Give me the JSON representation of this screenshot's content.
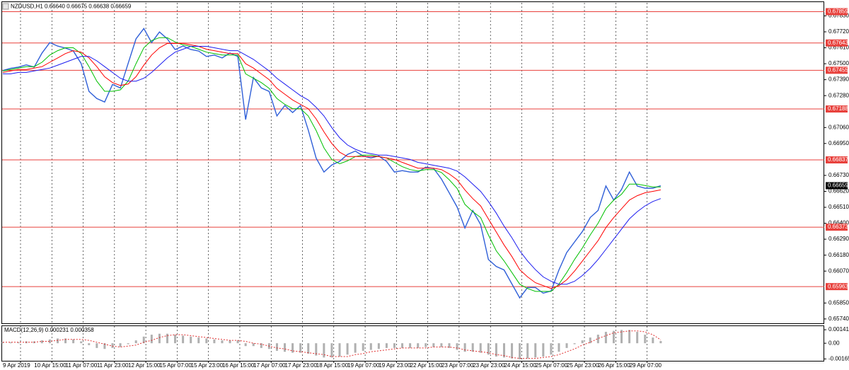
{
  "chart_data": [
    {
      "type": "line",
      "title": "NZDUSD,H1  0.66640 0.66675 0.66638 0.66659",
      "categories": [
        "9 Apr 2019",
        null,
        null,
        null,
        "10 Apr 15:00",
        null,
        null,
        null,
        "11 Apr 07:00",
        null,
        null,
        null,
        "11 Apr 23:00",
        null,
        null,
        null,
        "12 Apr 15:00",
        null,
        null,
        null,
        "15 Apr 07:00",
        null,
        null,
        null,
        "15 Apr 23:00",
        null,
        null,
        null,
        "16 Apr 15:00",
        null,
        null,
        null,
        "17 Apr 07:00",
        null,
        null,
        null,
        "17 Apr 23:00",
        null,
        null,
        null,
        "18 Apr 15:00",
        null,
        null,
        null,
        "19 Apr 07:00",
        null,
        null,
        null,
        "19 Apr 23:00",
        null,
        null,
        null,
        "22 Apr 15:00",
        null,
        null,
        null,
        "23 Apr 07:00",
        null,
        null,
        null,
        "23 Apr 23:00",
        null,
        null,
        null,
        "24 Apr 15:00",
        null,
        null,
        null,
        "25 Apr 07:00",
        null,
        null,
        null,
        "25 Apr 23:00",
        null,
        null,
        null,
        "26 Apr 15:00",
        null,
        null,
        null,
        "29 Apr 07:00",
        null,
        null,
        null,
        null
      ],
      "series": [
        {
          "color": "#2f5fd8",
          "width": 1.4,
          "values": [
            0.67453,
            0.67468,
            0.67477,
            0.67492,
            0.67477,
            0.67574,
            0.67646,
            0.67622,
            0.67608,
            0.67588,
            0.67502,
            0.67309,
            0.6726,
            0.67236,
            0.67357,
            0.67333,
            0.67502,
            0.67671,
            0.67743,
            0.67646,
            0.67719,
            0.67671,
            0.67598,
            0.67622,
            0.67598,
            0.67588,
            0.6755,
            0.6756,
            0.6754,
            0.67574,
            0.6755,
            0.67115,
            0.67405,
            0.67333,
            0.67309,
            0.6714,
            0.67212,
            0.67164,
            0.67212,
            0.67043,
            0.6685,
            0.66753,
            0.66802,
            0.66826,
            0.66874,
            0.66898,
            0.66864,
            0.6685,
            0.66864,
            0.66826,
            0.66753,
            0.66763,
            0.66753,
            0.66753,
            0.66787,
            0.66778,
            0.66705,
            0.66609,
            0.66512,
            0.66367,
            0.66488,
            0.66391,
            0.6615,
            0.66102,
            0.66078,
            0.65981,
            0.65885,
            0.65957,
            0.65957,
            0.65918,
            0.65933,
            0.66078,
            0.66198,
            0.66271,
            0.66343,
            0.6644,
            0.66488,
            0.66657,
            0.6656,
            0.66633,
            0.66753,
            0.66657,
            0.66642,
            0.66642,
            0.66659
          ]
        },
        {
          "color": "#00c000",
          "width": 1,
          "values": [
            0.6745,
            0.6746,
            0.6747,
            0.6748,
            0.6748,
            0.6751,
            0.6756,
            0.6759,
            0.6761,
            0.6761,
            0.6757,
            0.6748,
            0.6738,
            0.6731,
            0.6731,
            0.6732,
            0.6738,
            0.675,
            0.6761,
            0.6766,
            0.6768,
            0.6768,
            0.6765,
            0.6763,
            0.6762,
            0.676,
            0.6758,
            0.6757,
            0.6756,
            0.6756,
            0.6756,
            0.6743,
            0.674,
            0.6737,
            0.6733,
            0.6726,
            0.6722,
            0.6719,
            0.6719,
            0.6714,
            0.6704,
            0.6692,
            0.6684,
            0.6681,
            0.6683,
            0.6686,
            0.6687,
            0.6687,
            0.6686,
            0.6685,
            0.6682,
            0.6679,
            0.6677,
            0.6676,
            0.6677,
            0.6677,
            0.6675,
            0.667,
            0.6664,
            0.6653,
            0.6648,
            0.6644,
            0.6632,
            0.6621,
            0.6614,
            0.6606,
            0.6598,
            0.6595,
            0.6593,
            0.6593,
            0.6593,
            0.6598,
            0.6606,
            0.6615,
            0.6623,
            0.6632,
            0.664,
            0.665,
            0.6656,
            0.666,
            0.6667,
            0.6667,
            0.6666,
            0.6665,
            0.6665
          ]
        },
        {
          "color": "#ff0000",
          "width": 1,
          "values": [
            0.6744,
            0.6745,
            0.6746,
            0.6746,
            0.6747,
            0.6748,
            0.6751,
            0.6754,
            0.6757,
            0.6759,
            0.6758,
            0.6754,
            0.6748,
            0.6741,
            0.6737,
            0.6735,
            0.6736,
            0.6741,
            0.6749,
            0.6756,
            0.6761,
            0.6764,
            0.6764,
            0.6764,
            0.6763,
            0.6762,
            0.676,
            0.6759,
            0.6758,
            0.6757,
            0.6757,
            0.675,
            0.6747,
            0.6743,
            0.6739,
            0.6733,
            0.6729,
            0.6725,
            0.6722,
            0.6719,
            0.6712,
            0.6703,
            0.6695,
            0.6689,
            0.6686,
            0.6686,
            0.6686,
            0.6686,
            0.6686,
            0.6685,
            0.6684,
            0.6682,
            0.668,
            0.6678,
            0.6678,
            0.6678,
            0.6677,
            0.6674,
            0.667,
            0.6663,
            0.6657,
            0.6652,
            0.6643,
            0.6634,
            0.6625,
            0.6617,
            0.6608,
            0.6603,
            0.6599,
            0.6597,
            0.6595,
            0.6597,
            0.6601,
            0.6607,
            0.6614,
            0.6621,
            0.6628,
            0.6637,
            0.6644,
            0.665,
            0.6656,
            0.6659,
            0.6661,
            0.6662,
            0.6663
          ]
        },
        {
          "color": "#1c1cf0",
          "width": 1,
          "values": [
            0.6743,
            0.6743,
            0.6744,
            0.6744,
            0.6745,
            0.6746,
            0.6747,
            0.6749,
            0.6751,
            0.6753,
            0.6755,
            0.6755,
            0.6752,
            0.6748,
            0.6744,
            0.674,
            0.6738,
            0.6738,
            0.674,
            0.6744,
            0.6749,
            0.6754,
            0.6758,
            0.676,
            0.6762,
            0.6762,
            0.6762,
            0.6761,
            0.676,
            0.6759,
            0.6759,
            0.6756,
            0.6753,
            0.6749,
            0.6745,
            0.674,
            0.6736,
            0.6732,
            0.6728,
            0.6725,
            0.672,
            0.6714,
            0.6706,
            0.6699,
            0.6694,
            0.6691,
            0.6689,
            0.6688,
            0.6687,
            0.6687,
            0.6686,
            0.6685,
            0.6684,
            0.6682,
            0.6681,
            0.668,
            0.6679,
            0.6678,
            0.6676,
            0.6672,
            0.6667,
            0.6662,
            0.6655,
            0.6647,
            0.6638,
            0.663,
            0.6621,
            0.6614,
            0.6608,
            0.6603,
            0.66,
            0.6598,
            0.6598,
            0.66,
            0.6604,
            0.6609,
            0.6615,
            0.6622,
            0.6629,
            0.6636,
            0.6643,
            0.6648,
            0.6652,
            0.6655,
            0.6657
          ]
        }
      ],
      "levels": {
        "color": "#e8413c",
        "values": [
          0.67859,
          0.67643,
          0.67455,
          0.67188,
          0.66837,
          0.66373,
          0.65963
        ]
      },
      "current_price": 0.66659,
      "ylim": [
        0.6571,
        0.6792
      ],
      "yticks": [
        {
          "value": 0.6783,
          "label": "0.67830"
        },
        {
          "value": 0.6772,
          "label": "0.67720"
        },
        {
          "value": 0.6761,
          "label": "0.67610"
        },
        {
          "value": 0.675,
          "label": "0.67500"
        },
        {
          "value": 0.6739,
          "label": "0.67390"
        },
        {
          "value": 0.6728,
          "label": "0.67280"
        },
        {
          "value": 0.6706,
          "label": "0.67060"
        },
        {
          "value": 0.6695,
          "label": "0.66950"
        },
        {
          "value": 0.6673,
          "label": "0.66730"
        },
        {
          "value": 0.6662,
          "label": "0.66620"
        },
        {
          "value": 0.6651,
          "label": "0.66510"
        },
        {
          "value": 0.664,
          "label": "0.66400"
        },
        {
          "value": 0.6629,
          "label": "0.66290"
        },
        {
          "value": 0.6618,
          "label": "0.66180"
        },
        {
          "value": 0.6607,
          "label": "0.66070"
        },
        {
          "value": 0.6585,
          "label": "0.65850"
        },
        {
          "value": 0.6574,
          "label": "0.65740"
        }
      ],
      "grid": "x"
    },
    {
      "type": "bar",
      "title": "MACD(12,26,9) 0.000231 0.000358",
      "series": [
        {
          "type": "bar",
          "color": "#b0b0b0",
          "values": [
            0.0001,
            0.0001,
            0.0001,
            0.0002,
            0.0002,
            0.0003,
            0.0004,
            0.0005,
            0.0005,
            0.0004,
            0.0002,
            -0.0002,
            -0.0005,
            -0.0006,
            -0.0005,
            -0.0004,
            -0.0001,
            0.0003,
            0.0007,
            0.0009,
            0.001,
            0.001,
            0.0009,
            0.0008,
            0.0007,
            0.0006,
            0.0005,
            0.0004,
            0.0003,
            0.0003,
            0.0003,
            -0.0003,
            -0.0003,
            -0.0005,
            -0.0006,
            -0.0008,
            -0.0009,
            -0.001,
            -0.001,
            -0.0011,
            -0.0013,
            -0.0015,
            -0.0015,
            -0.0014,
            -0.0012,
            -0.001,
            -0.0008,
            -0.0007,
            -0.0006,
            -0.0005,
            -0.0005,
            -0.0005,
            -0.0005,
            -0.0005,
            -0.0004,
            -0.0004,
            -0.0004,
            -0.0005,
            -0.0007,
            -0.0009,
            -0.0009,
            -0.001,
            -0.0012,
            -0.0014,
            -0.0015,
            -0.0016,
            -0.0017,
            -0.0016,
            -0.0015,
            -0.0014,
            -0.0012,
            -0.0009,
            -0.0005,
            -0.0001,
            0.0003,
            0.0006,
            0.0009,
            0.0012,
            0.0013,
            0.0014,
            0.0014,
            0.0012,
            0.0009,
            0.0006,
            0.000231
          ]
        },
        {
          "type": "line",
          "color": "#e03030",
          "dashed": true,
          "values": [
            0.0001,
            0.0001,
            0.0001,
            0.0001,
            0.0001,
            0.0002,
            0.0002,
            0.0003,
            0.0004,
            0.0004,
            0.0004,
            0.0003,
            0.0001,
            -0.0001,
            -0.0003,
            -0.0004,
            -0.0003,
            -0.0002,
            0.0001,
            0.0003,
            0.0006,
            0.0008,
            0.0009,
            0.0009,
            0.0008,
            0.0007,
            0.0006,
            0.0005,
            0.0004,
            0.0003,
            0.0003,
            0.0002,
            0,
            -0.0001,
            -0.0003,
            -0.0005,
            -0.0006,
            -0.0008,
            -0.0009,
            -0.001,
            -0.0011,
            -0.0012,
            -0.0014,
            -0.0014,
            -0.0014,
            -0.0012,
            -0.0011,
            -0.0009,
            -0.0008,
            -0.0007,
            -0.0006,
            -0.0005,
            -0.0005,
            -0.0005,
            -0.0005,
            -0.0004,
            -0.0004,
            -0.0004,
            -0.0005,
            -0.0007,
            -0.0008,
            -0.0009,
            -0.001,
            -0.0012,
            -0.0013,
            -0.0015,
            -0.0016,
            -0.0016,
            -0.0016,
            -0.0015,
            -0.0014,
            -0.0012,
            -0.0009,
            -0.0006,
            -0.0002,
            0.0001,
            0.0005,
            0.0008,
            0.0011,
            0.0012,
            0.0013,
            0.0013,
            0.0012,
            0.0009,
            0.000358
          ]
        }
      ],
      "ylim": [
        -0.00185,
        0.0018
      ],
      "yticks": [
        0.001418,
        {
          "value": 0,
          "label": "0.00"
        },
        -0.001651
      ]
    }
  ]
}
